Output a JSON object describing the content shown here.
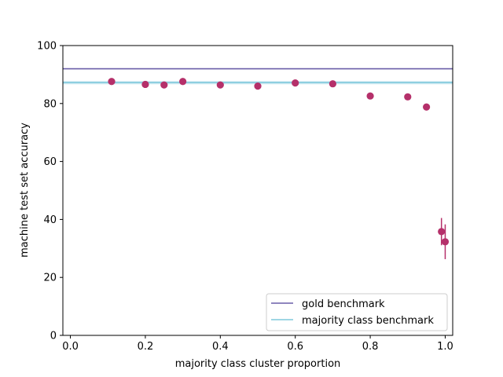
{
  "chart_data": {
    "type": "scatter",
    "title": "",
    "xlabel": "majority class cluster proportion",
    "ylabel": "machine test set accuracy",
    "xlim": [
      -0.02,
      1.02
    ],
    "ylim": [
      0,
      100
    ],
    "xticks": [
      0.0,
      0.2,
      0.4,
      0.6,
      0.8,
      1.0
    ],
    "xtick_labels": [
      "0.0",
      "0.2",
      "0.4",
      "0.6",
      "0.8",
      "1.0"
    ],
    "yticks": [
      0,
      20,
      40,
      60,
      80,
      100
    ],
    "ytick_labels": [
      "0",
      "20",
      "40",
      "60",
      "80",
      "100"
    ],
    "grid": false,
    "legend_placement": "lower-right",
    "series": [
      {
        "color": "#b5306a",
        "points": [
          {
            "x": 0.11,
            "y": 87.6,
            "err": 0.4
          },
          {
            "x": 0.2,
            "y": 86.6,
            "err": 0.4
          },
          {
            "x": 0.25,
            "y": 86.4,
            "err": 0.4
          },
          {
            "x": 0.3,
            "y": 87.6,
            "err": 0.4
          },
          {
            "x": 0.4,
            "y": 86.4,
            "err": 0.4
          },
          {
            "x": 0.5,
            "y": 86.0,
            "err": 0.4
          },
          {
            "x": 0.6,
            "y": 87.1,
            "err": 0.4
          },
          {
            "x": 0.7,
            "y": 86.8,
            "err": 0.4
          },
          {
            "x": 0.8,
            "y": 82.6,
            "err": 0.6
          },
          {
            "x": 0.9,
            "y": 82.3,
            "err": 0.8
          },
          {
            "x": 0.95,
            "y": 78.8,
            "err": 0.6
          },
          {
            "x": 0.99,
            "y": 35.8,
            "err": 4.7
          },
          {
            "x": 1.0,
            "y": 32.3,
            "err": 6.0
          }
        ]
      }
    ],
    "reference_lines": [
      {
        "name": "gold benchmark",
        "y": 92.0,
        "color": "#6a5ea8",
        "band": 0
      },
      {
        "name": "majority class benchmark",
        "y": 87.2,
        "color": "#7ec8dc",
        "band": 0.6
      }
    ]
  }
}
